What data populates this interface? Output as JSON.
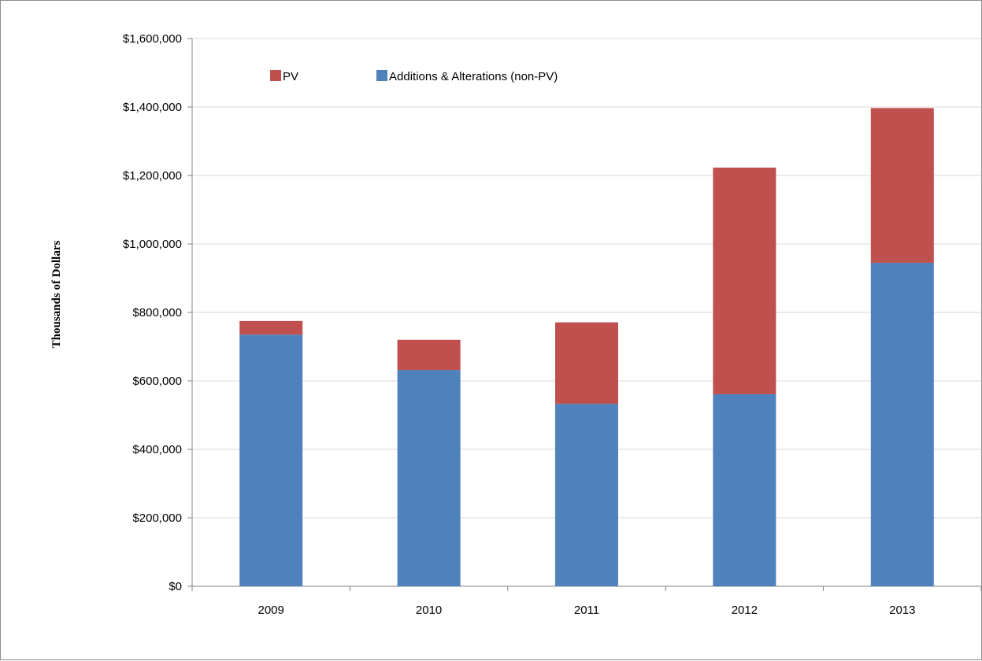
{
  "chart_data": {
    "type": "bar",
    "stacked": true,
    "title": "",
    "xlabel": "",
    "ylabel": "Thousands of Dollars",
    "categories": [
      "2009",
      "2010",
      "2011",
      "2012",
      "2013"
    ],
    "ylim": [
      0,
      1600000
    ],
    "yticks": [
      0,
      200000,
      400000,
      600000,
      800000,
      1000000,
      1200000,
      1400000,
      1600000
    ],
    "ytick_labels": [
      "$0",
      "$200,000",
      "$400,000",
      "$600,000",
      "$800,000",
      "$1,000,000",
      "$1,200,000",
      "$1,400,000",
      "$1,600,000"
    ],
    "grid": true,
    "legend_position": "top-left",
    "series": [
      {
        "name": "Additions & Alterations (non-PV)",
        "color": "#4f81bd",
        "values": [
          735000,
          632000,
          533000,
          561000,
          945000
        ]
      },
      {
        "name": "PV",
        "color": "#c0504d",
        "values": [
          40000,
          88000,
          238000,
          662000,
          452000
        ]
      }
    ],
    "legend_order": [
      "PV",
      "Additions & Alterations (non-PV)"
    ]
  }
}
